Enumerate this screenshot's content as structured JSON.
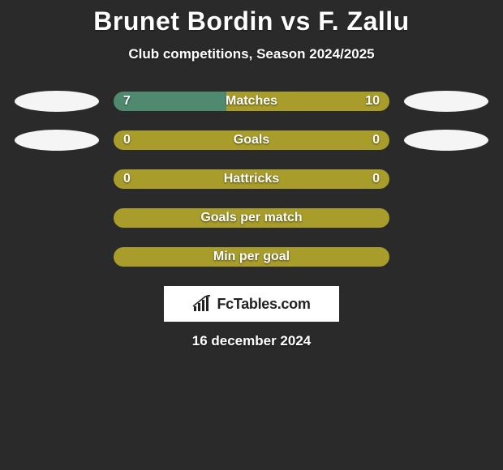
{
  "title": "Brunet Bordin vs F. Zallu",
  "subtitle": "Club competitions, Season 2024/2025",
  "date": "16 december 2024",
  "logo_text": "FcTables.com",
  "colors": {
    "olive": "#a89c2a",
    "teal": "#4f8a6f",
    "ellipse": "#f5f5f5",
    "background": "#2a2a2a"
  },
  "stats": [
    {
      "label": "Matches",
      "left_value": "7",
      "right_value": "10",
      "left_pct": 41,
      "left_color": "#4f8a6f",
      "right_color": "#a89c2a",
      "show_left_ellipse": true,
      "show_right_ellipse": true
    },
    {
      "label": "Goals",
      "left_value": "0",
      "right_value": "0",
      "left_pct": 50,
      "left_color": "#a89c2a",
      "right_color": "#a89c2a",
      "show_left_ellipse": true,
      "show_right_ellipse": true
    },
    {
      "label": "Hattricks",
      "left_value": "0",
      "right_value": "0",
      "left_pct": 50,
      "left_color": "#a89c2a",
      "right_color": "#a89c2a",
      "show_left_ellipse": false,
      "show_right_ellipse": false
    },
    {
      "label": "Goals per match",
      "left_value": "",
      "right_value": "",
      "left_pct": 50,
      "left_color": "#a89c2a",
      "right_color": "#a89c2a",
      "show_left_ellipse": false,
      "show_right_ellipse": false
    },
    {
      "label": "Min per goal",
      "left_value": "",
      "right_value": "",
      "left_pct": 50,
      "left_color": "#a89c2a",
      "right_color": "#a89c2a",
      "show_left_ellipse": false,
      "show_right_ellipse": false
    }
  ]
}
